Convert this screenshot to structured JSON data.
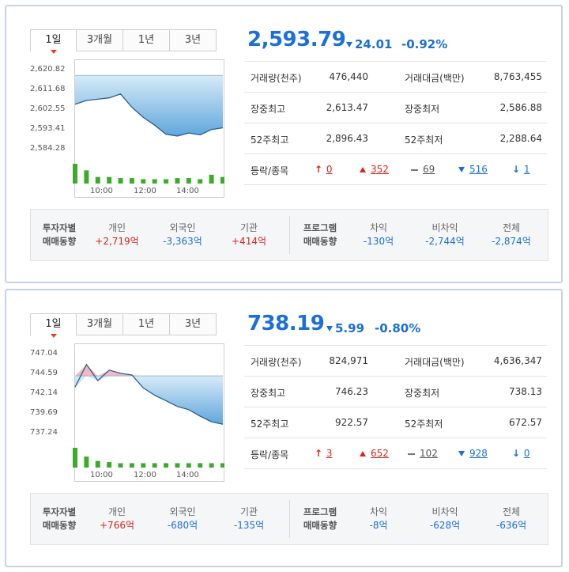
{
  "tabs": [
    "1일",
    "3개월",
    "1년",
    "3년"
  ],
  "x_ticks": [
    "10:00",
    "12:00",
    "14:00"
  ],
  "labels": {
    "volume": "거래량(천주)",
    "amount": "거래대금(백만)",
    "day_high": "장중최고",
    "day_low": "장중최저",
    "w52_high": "52주최고",
    "w52_low": "52주최저",
    "updown": "등락/종목",
    "investor_title_1": "투자자별",
    "investor_title_2": "매매동향",
    "program_title_1": "프로그램",
    "program_title_2": "매매동향",
    "individual": "개인",
    "foreign": "외국인",
    "institution": "기관",
    "arbitrage": "차익",
    "non_arbitrage": "비차익",
    "total": "전체"
  },
  "colors": {
    "up": "#d8261c",
    "down": "#1a6fd8",
    "fill": "#5fa7dc",
    "volume": "#3cab2c"
  },
  "panels": [
    {
      "index_value": "2,593.79",
      "change": "24.01",
      "change_pct": "-0.92%",
      "volume": "476,440",
      "amount": "8,763,455",
      "day_high": "2,613.47",
      "day_low": "2,586.88",
      "w52_high": "2,896.43",
      "w52_low": "2,288.64",
      "upper_limit": "0",
      "rise": "352",
      "flat": "69",
      "fall": "516",
      "lower_limit": "1",
      "individual": "+2,719억",
      "foreign": "-3,363억",
      "institution": "+414억",
      "arbitrage": "-130억",
      "non_arbitrage": "-2,744억",
      "total": "-2,874억",
      "chart_data": {
        "type": "area",
        "y_ticks": [
          "2,620.82",
          "2,611.68",
          "2,602.55",
          "2,593.41",
          "2,584.28"
        ],
        "ylim": [
          2584.28,
          2620.82
        ],
        "baseline": 2617.8,
        "x": [
          "09:00",
          "09:30",
          "10:00",
          "10:30",
          "11:00",
          "11:30",
          "12:00",
          "12:30",
          "13:00",
          "13:30",
          "14:00",
          "14:30",
          "15:00",
          "15:30"
        ],
        "values": [
          2604.5,
          2606.2,
          2606.8,
          2607.4,
          2609.2,
          2603.1,
          2598.4,
          2594.8,
          2590.6,
          2589.8,
          2591.2,
          2590.3,
          2592.8,
          2593.6
        ],
        "volume": [
          9,
          6,
          3,
          3,
          2.5,
          2.5,
          2,
          2,
          2,
          2.5,
          2.5,
          2,
          4,
          3
        ]
      }
    },
    {
      "index_value": "738.19",
      "change": "5.99",
      "change_pct": "-0.80%",
      "volume": "824,971",
      "amount": "4,636,347",
      "day_high": "746.23",
      "day_low": "738.13",
      "w52_high": "922.57",
      "w52_low": "672.57",
      "upper_limit": "3",
      "rise": "652",
      "flat": "102",
      "fall": "928",
      "lower_limit": "0",
      "individual": "+766억",
      "foreign": "-680억",
      "institution": "-135억",
      "arbitrage": "-8억",
      "non_arbitrage": "-628억",
      "total": "-636억",
      "chart_data": {
        "type": "area",
        "y_ticks": [
          "747.04",
          "744.59",
          "742.14",
          "739.69",
          "737.24"
        ],
        "ylim": [
          737.24,
          747.04
        ],
        "baseline": 744.18,
        "x": [
          "09:00",
          "09:30",
          "10:00",
          "10:30",
          "11:00",
          "11:30",
          "12:00",
          "12:30",
          "13:00",
          "13:30",
          "14:00",
          "14:30",
          "15:00",
          "15:30"
        ],
        "values": [
          742.8,
          745.6,
          743.6,
          744.9,
          744.5,
          744.3,
          742.7,
          741.8,
          741.1,
          740.4,
          740.0,
          739.2,
          738.5,
          738.2
        ],
        "volume": [
          9,
          5,
          3,
          2.5,
          2,
          2,
          2,
          2,
          2,
          2,
          2,
          2,
          2,
          2
        ]
      }
    }
  ]
}
